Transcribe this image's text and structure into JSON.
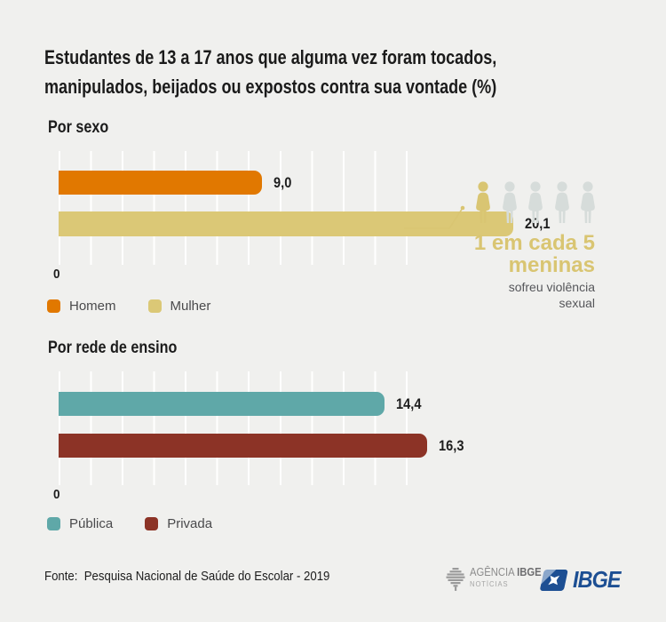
{
  "page": {
    "background": "#f0f0ee",
    "text_color": "#1b1b1b"
  },
  "title": {
    "lines": [
      "Estudantes de 13 a 17 anos que alguma vez foram tocados,",
      "manipulados, beijados ou expostos contra sua vontade (%)"
    ]
  },
  "chart_data": [
    {
      "type": "bar",
      "orientation": "horizontal",
      "title": "Por sexo",
      "categories": [
        "Homem",
        "Mulher"
      ],
      "values": [
        9.0,
        20.1
      ],
      "value_labels": [
        "9,0",
        "20,1"
      ],
      "colors": [
        "#e17800",
        "#dbc876"
      ],
      "xlim": [
        0,
        22
      ],
      "gridline_step": 2,
      "zero_tick": "0",
      "grid": "white vertical gridlines on gray background",
      "legend_position": "below"
    },
    {
      "type": "bar",
      "orientation": "horizontal",
      "title": "Por rede de ensino",
      "categories": [
        "Pública",
        "Privada"
      ],
      "values": [
        14.4,
        16.3
      ],
      "value_labels": [
        "14,4",
        "16,3"
      ],
      "colors": [
        "#5fa8a8",
        "#8c3326"
      ],
      "xlim": [
        0,
        22
      ],
      "gridline_step": 2,
      "zero_tick": "0",
      "grid": "white vertical gridlines on gray background",
      "legend_position": "below"
    }
  ],
  "callout": {
    "highlight_line1": "1 em cada 5",
    "highlight_line2": "meninas",
    "subtext_line1": "sofreu violência",
    "subtext_line2": "sexual",
    "accent_color": "#d9c572",
    "figure_inactive_color": "#d6dcda",
    "figures_total": 5,
    "figures_highlighted": 1
  },
  "footer": {
    "source": "Fonte:  Pesquisa Nacional de Saúde do Escolar - 2019",
    "agencia_logo": {
      "word1": "AGÊNCIA",
      "word2": "IBGE",
      "line2": "NOTÍCIAS"
    },
    "ibge_logo_text": "IBGE",
    "ibge_blue": "#1d4f93"
  }
}
